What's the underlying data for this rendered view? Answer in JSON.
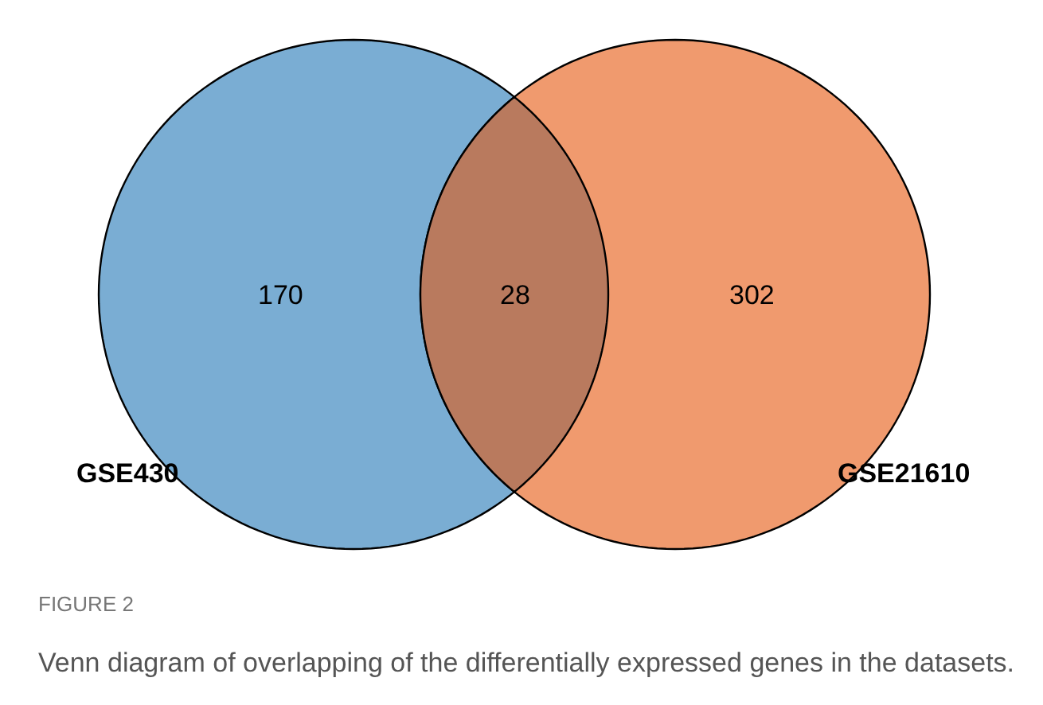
{
  "chart_data": {
    "type": "other",
    "categories": [
      "GSE430",
      null,
      "GSE21610"
    ],
    "values": [
      170,
      28,
      302
    ],
    "colors": [
      "#7aadd3",
      "#b97a5e",
      "#f09a6e"
    ],
    "data_labels": true,
    "annotations": [
      "FIGURE 2",
      "Venn diagram of overlapping of the differentially expressed genes in the datasets."
    ]
  }
}
